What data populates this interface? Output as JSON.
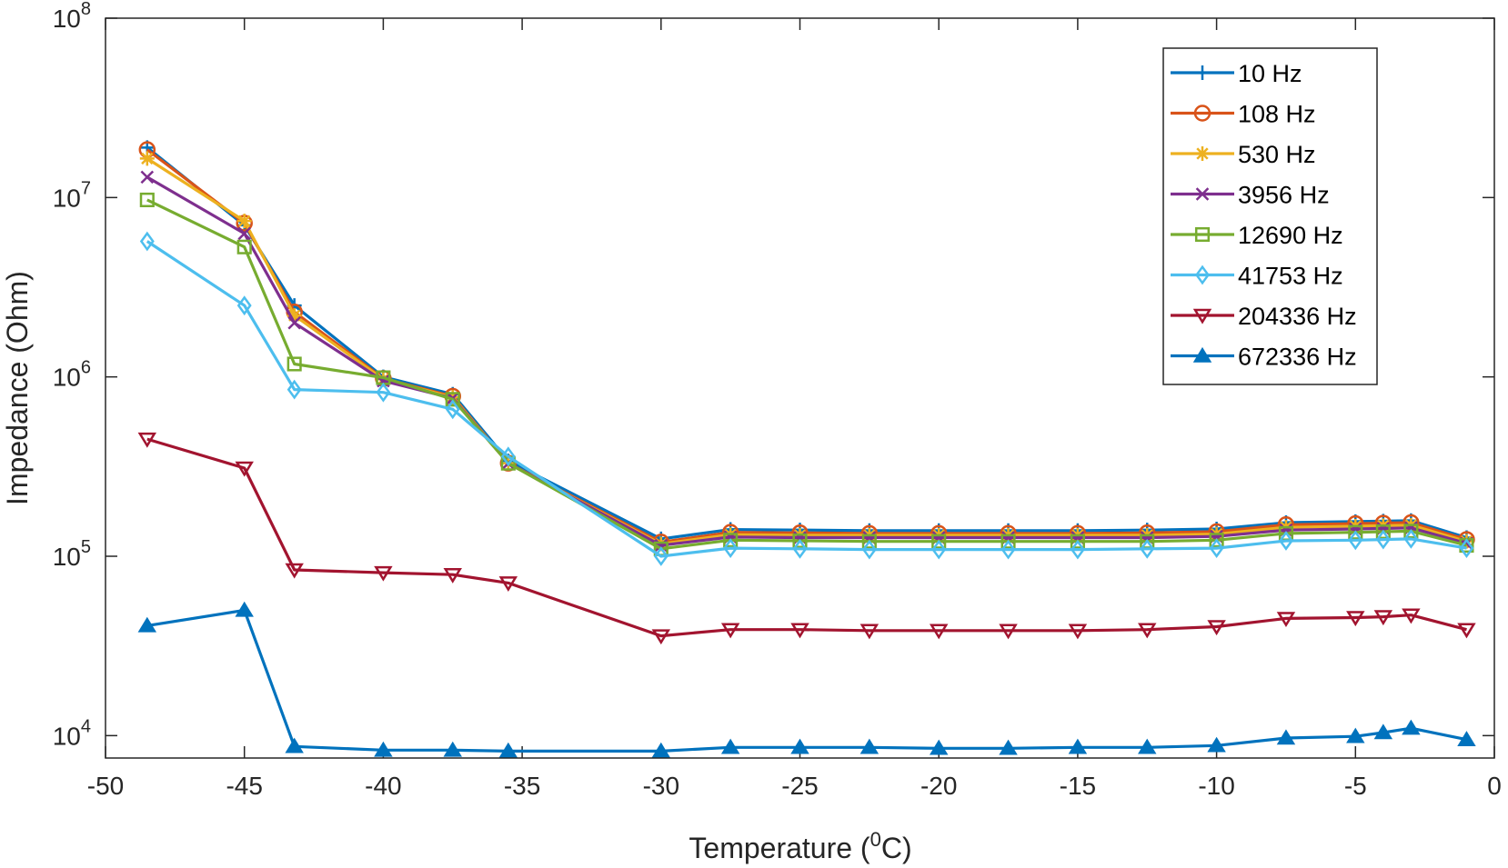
{
  "chart_data": {
    "type": "line",
    "title": "",
    "xlabel": "Temperature (",
    "xlabel_sup": "0",
    "xlabel_suffix": "C)",
    "ylabel": "Impedance (Ohm)",
    "xlim": [
      -50,
      0
    ],
    "ylim": [
      7500,
      100000000
    ],
    "yscale": "log",
    "grid": false,
    "legend_position": "top-right",
    "x_ticks": [
      -50,
      -45,
      -40,
      -35,
      -30,
      -25,
      -20,
      -15,
      -10,
      -5,
      0
    ],
    "x_tick_labels": [
      "-50",
      "-45",
      "-40",
      "-35",
      "-30",
      "-25",
      "-20",
      "-15",
      "-10",
      "-5",
      "0"
    ],
    "y_ticks": [
      10000,
      100000,
      1000000,
      10000000,
      100000000
    ],
    "y_tick_bases": [
      "10",
      "10",
      "10",
      "10",
      "10"
    ],
    "y_tick_exponents": [
      "4",
      "5",
      "6",
      "7",
      "8"
    ],
    "x": [
      -48.5,
      -45,
      -43.2,
      -40,
      -37.5,
      -35.5,
      -30,
      -27.5,
      -25,
      -22.5,
      -20,
      -17.5,
      -15,
      -12.5,
      -10,
      -7.5,
      -5,
      -4,
      -3,
      -1
    ],
    "series": [
      {
        "name": "10 Hz",
        "color": "#0072BD",
        "marker": "plus",
        "values": [
          19000000,
          7000000,
          2500000,
          1000000,
          800000,
          340000,
          125000,
          141000,
          140000,
          139000,
          139000,
          139000,
          139000,
          140000,
          142000,
          154000,
          156000,
          157000,
          158000,
          127000
        ]
      },
      {
        "name": "108 Hz",
        "color": "#D95319",
        "marker": "circle",
        "values": [
          18500000,
          7200000,
          2300000,
          980000,
          780000,
          330000,
          120000,
          136000,
          135000,
          134000,
          134000,
          134000,
          134000,
          135000,
          137000,
          150000,
          152000,
          153000,
          154000,
          124000
        ]
      },
      {
        "name": "530 Hz",
        "color": "#EDB120",
        "marker": "star",
        "values": [
          16500000,
          7400000,
          2200000,
          970000,
          770000,
          330000,
          117000,
          132000,
          131000,
          131000,
          131000,
          131000,
          131000,
          131000,
          133000,
          145000,
          147000,
          148000,
          149000,
          121000
        ]
      },
      {
        "name": "3956 Hz",
        "color": "#7E2F8E",
        "marker": "x",
        "values": [
          13000000,
          6300000,
          2000000,
          950000,
          760000,
          330000,
          115000,
          128000,
          127000,
          127000,
          127000,
          127000,
          127000,
          127000,
          129000,
          140000,
          142000,
          143000,
          144000,
          118000
        ]
      },
      {
        "name": "12690 Hz",
        "color": "#77AC30",
        "marker": "square",
        "values": [
          9700000,
          5300000,
          1180000,
          990000,
          750000,
          330000,
          110000,
          123000,
          122000,
          121000,
          121000,
          121000,
          121000,
          121000,
          123000,
          134000,
          136000,
          137000,
          138000,
          115000
        ]
      },
      {
        "name": "41753 Hz",
        "color": "#4DBEEE",
        "marker": "diamond",
        "values": [
          5700000,
          2500000,
          850000,
          820000,
          660000,
          360000,
          100000,
          111000,
          110000,
          109000,
          109000,
          109000,
          109000,
          110000,
          111000,
          122000,
          123000,
          124000,
          125000,
          111000
        ]
      },
      {
        "name": "204336 Hz",
        "color": "#A2142F",
        "marker": "triangle-down",
        "values": [
          450000,
          310000,
          84000,
          81000,
          79000,
          71000,
          36000,
          39000,
          39000,
          38500,
          38500,
          38500,
          38500,
          39000,
          40500,
          45000,
          45500,
          46000,
          47000,
          39000
        ]
      },
      {
        "name": "672336 Hz",
        "color": "#0072BD",
        "marker": "triangle-up",
        "values": [
          41000,
          50000,
          8700,
          8300,
          8300,
          8200,
          8200,
          8600,
          8600,
          8600,
          8500,
          8500,
          8600,
          8600,
          8800,
          9700,
          9900,
          10400,
          11000,
          9500
        ]
      }
    ]
  }
}
